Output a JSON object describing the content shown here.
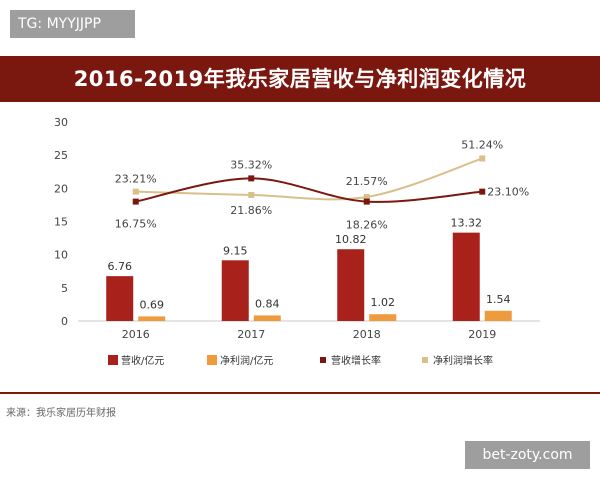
{
  "watermark_top": "TG: MYYJJPP",
  "watermark_bottom": "bet-zoty.com",
  "source": "来源：我乐家居历年财报",
  "chart_data": {
    "type": "bar",
    "title": "2016-2019年我乐家居营收与净利润变化情况",
    "categories": [
      "2016",
      "2017",
      "2018",
      "2019"
    ],
    "ylim": [
      0,
      30
    ],
    "yticks": [
      "0",
      "5",
      "10",
      "15",
      "20",
      "25",
      "30"
    ],
    "grid": false,
    "legend_position": "bottom",
    "series": [
      {
        "name": "营收/亿元",
        "kind": "bar",
        "color": "#a8211a",
        "values": [
          6.76,
          9.15,
          10.82,
          13.32
        ],
        "labels": [
          "6.76",
          "9.15",
          "10.82",
          "13.32"
        ]
      },
      {
        "name": "净利润/亿元",
        "kind": "bar",
        "color": "#f09a3e",
        "values": [
          0.69,
          0.84,
          1.02,
          1.54
        ],
        "labels": [
          "0.69",
          "0.84",
          "1.02",
          "1.54"
        ]
      },
      {
        "name": "营收增长率",
        "kind": "line",
        "color": "#7a1810",
        "values": [
          18,
          21.5,
          18,
          19.5
        ],
        "labels": [
          "16.75%",
          "35.32%",
          "18.26%",
          "23.10%"
        ]
      },
      {
        "name": "净利润增长率",
        "kind": "line",
        "color": "#d9c08a",
        "values": [
          19.5,
          19,
          18.7,
          24.5
        ],
        "labels": [
          "23.21%",
          "21.86%",
          "21.57%",
          "51.24%"
        ]
      }
    ]
  }
}
